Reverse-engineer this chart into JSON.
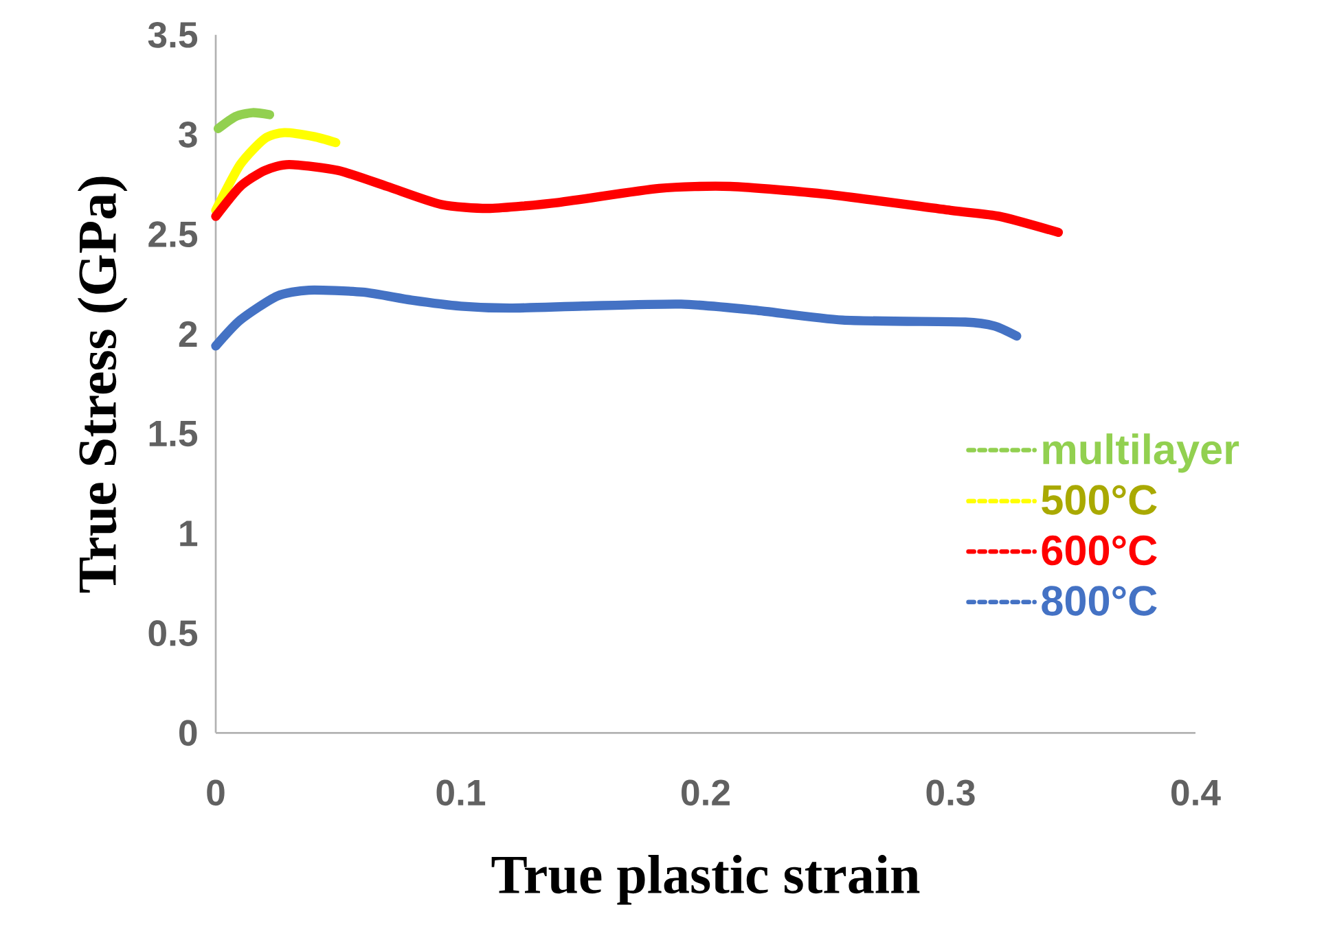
{
  "chart_data": {
    "type": "line",
    "xlabel": "True plastic strain",
    "ylabel": "True Stress (GPa)",
    "xlim": [
      0,
      0.4
    ],
    "xticks": [
      0,
      0.1,
      0.2,
      0.3,
      0.4
    ],
    "ylim": [
      0,
      3.5
    ],
    "yticks": [
      0,
      0.5,
      1,
      1.5,
      2,
      2.5,
      3,
      3.5
    ],
    "legend": "right",
    "line_style": "solid",
    "series": [
      {
        "name": "multilayer",
        "color": "#92d050",
        "x": [
          0.001,
          0.008,
          0.015,
          0.022
        ],
        "values": [
          3.03,
          3.09,
          3.11,
          3.1
        ]
      },
      {
        "name": "500°C",
        "color": "#ffff00",
        "x": [
          0,
          0.01,
          0.02,
          0.028,
          0.04,
          0.049
        ],
        "values": [
          2.62,
          2.85,
          2.98,
          3.01,
          2.99,
          2.96
        ]
      },
      {
        "name": "600°C",
        "color": "#ff0000",
        "x": [
          0,
          0.01,
          0.02,
          0.03,
          0.05,
          0.07,
          0.092,
          0.112,
          0.14,
          0.181,
          0.21,
          0.25,
          0.3,
          0.32,
          0.344
        ],
        "values": [
          2.59,
          2.74,
          2.82,
          2.85,
          2.82,
          2.74,
          2.65,
          2.63,
          2.66,
          2.73,
          2.74,
          2.7,
          2.62,
          2.59,
          2.51
        ]
      },
      {
        "name": "800°C",
        "color": "#4472c4",
        "x": [
          0,
          0.01,
          0.025,
          0.038,
          0.06,
          0.08,
          0.1,
          0.12,
          0.15,
          0.19,
          0.22,
          0.256,
          0.306,
          0.318,
          0.327
        ],
        "values": [
          1.94,
          2.07,
          2.19,
          2.22,
          2.21,
          2.17,
          2.14,
          2.13,
          2.14,
          2.15,
          2.12,
          2.07,
          2.06,
          2.04,
          1.99
        ]
      }
    ]
  }
}
